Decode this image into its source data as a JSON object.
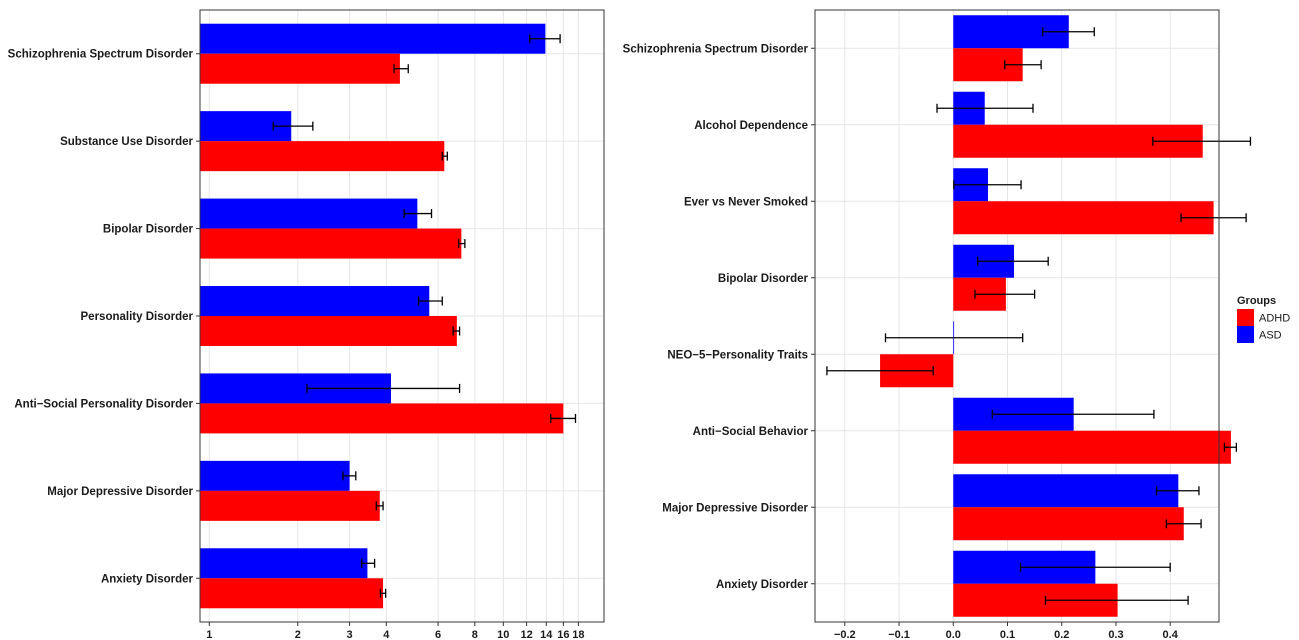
{
  "chart_data": [
    {
      "type": "bar",
      "orientation": "horizontal",
      "x_scale": "log",
      "xlim": [
        0.93,
        22
      ],
      "x_ticks": [
        1,
        2,
        3,
        4,
        6,
        8,
        10,
        12,
        14,
        16,
        18
      ],
      "x_tick_labels": [
        "1",
        "2",
        "3",
        "4",
        "6",
        "8",
        "10",
        "12",
        "14",
        "16",
        "18"
      ],
      "grid": true,
      "categories": [
        "Schizophrenia Spectrum Disorder",
        "Substance Use Disorder",
        "Bipolar Disorder",
        "Personality Disorder",
        "Anti−Social Personality Disorder",
        "Major Depressive Disorder",
        "Anxiety Disorder"
      ],
      "series": [
        {
          "name": "ASD",
          "color": "#0000ff",
          "values": [
            13.9,
            1.9,
            5.1,
            5.6,
            4.15,
            3.0,
            3.45
          ],
          "err_low": [
            12.3,
            1.65,
            4.6,
            5.15,
            2.15,
            2.85,
            3.3
          ],
          "err_high": [
            15.6,
            2.25,
            5.7,
            6.2,
            7.1,
            3.15,
            3.65
          ]
        },
        {
          "name": "ADHD",
          "color": "#ff0000",
          "values": [
            4.45,
            6.3,
            7.2,
            6.95,
            16.0,
            3.8,
            3.9
          ],
          "err_low": [
            4.25,
            6.2,
            7.05,
            6.75,
            14.5,
            3.7,
            3.82
          ],
          "err_high": [
            4.75,
            6.45,
            7.4,
            7.1,
            17.6,
            3.9,
            3.98
          ]
        }
      ]
    },
    {
      "type": "bar",
      "orientation": "horizontal",
      "xlim": [
        -0.255,
        0.49
      ],
      "x_ticks": [
        -0.2,
        -0.1,
        0.0,
        0.1,
        0.2,
        0.3,
        0.4
      ],
      "x_tick_labels": [
        "−0.2",
        "−0.1",
        "0.0",
        "0.1",
        "0.2",
        "0.3",
        "0.4"
      ],
      "grid": true,
      "categories": [
        "Schizophrenia Spectrum Disorder",
        "Alcohol Dependence",
        "Ever vs Never Smoked",
        "Bipolar Disorder",
        "NEO−5−Personality Traits",
        "Anti−Social Behavior",
        "Major Depressive Disorder",
        "Anxiety Disorder"
      ],
      "series": [
        {
          "name": "ASD",
          "color": "#0000ff",
          "values": [
            0.213,
            0.058,
            0.064,
            0.112,
            0.001,
            0.222,
            0.415,
            0.262
          ],
          "err_low": [
            0.165,
            -0.03,
            0.001,
            0.045,
            -0.125,
            0.072,
            0.375,
            0.124
          ],
          "err_high": [
            0.26,
            0.147,
            0.125,
            0.175,
            0.128,
            0.37,
            0.453,
            0.4
          ]
        },
        {
          "name": "ADHD",
          "color": "#ff0000",
          "values": [
            0.128,
            0.46,
            0.48,
            0.097,
            -0.135,
            0.512,
            0.425,
            0.303
          ],
          "err_low": [
            0.095,
            0.368,
            0.42,
            0.04,
            -0.233,
            0.5,
            0.393,
            0.17
          ],
          "err_high": [
            0.162,
            0.548,
            0.54,
            0.15,
            -0.037,
            0.522,
            0.457,
            0.433
          ]
        }
      ]
    }
  ],
  "legend": {
    "title": "Groups",
    "placement": "right",
    "items": [
      {
        "label": "ADHD",
        "color": "#ff0000"
      },
      {
        "label": "ASD",
        "color": "#0000ff"
      }
    ]
  }
}
